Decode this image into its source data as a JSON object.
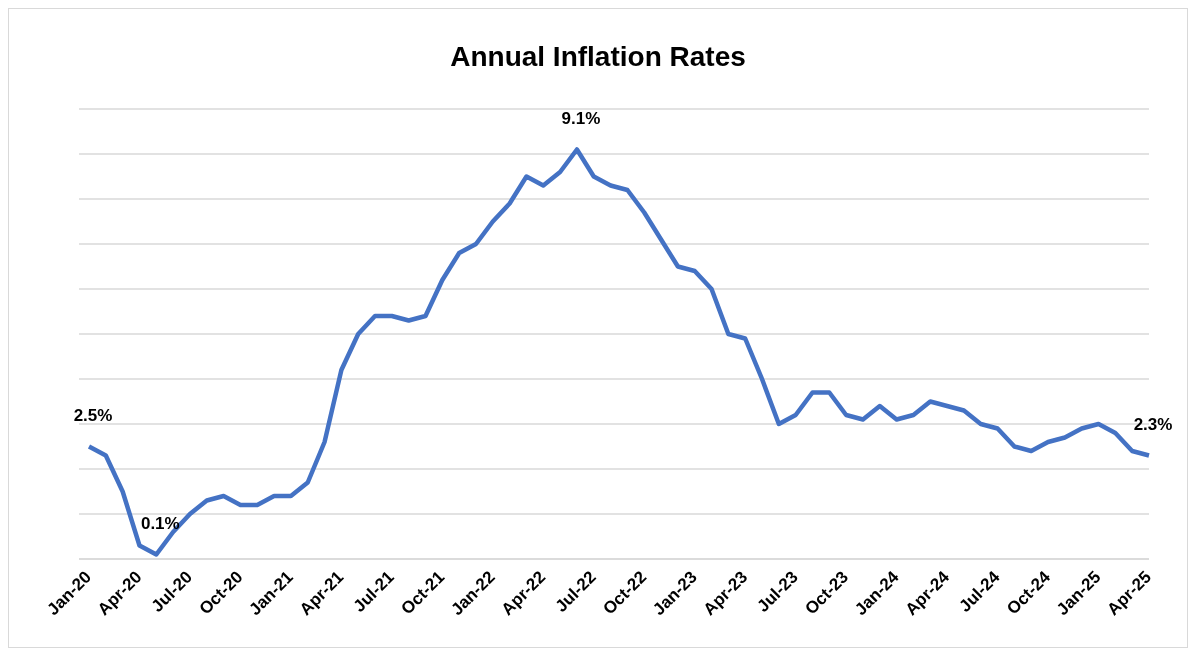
{
  "chart_data": {
    "type": "line",
    "title": "Annual Inflation Rates",
    "categories": [
      "Jan-20",
      null,
      null,
      "Apr-20",
      null,
      null,
      "Jul-20",
      null,
      null,
      "Oct-20",
      null,
      null,
      "Jan-21",
      null,
      null,
      "Apr-21",
      null,
      null,
      "Jul-21",
      null,
      null,
      "Oct-21",
      null,
      null,
      "Jan-22",
      null,
      null,
      "Apr-22",
      null,
      null,
      "Jul-22",
      null,
      null,
      "Oct-22",
      null,
      null,
      "Jan-23",
      null,
      null,
      "Apr-23",
      null,
      null,
      "Jul-23",
      null,
      null,
      "Oct-23",
      null,
      null,
      "Jan-24",
      null,
      null,
      "Apr-24",
      null,
      null,
      "Jul-24",
      null,
      null,
      "Oct-24",
      null,
      null,
      "Jan-25",
      null,
      null,
      "Apr-25"
    ],
    "values": [
      2.5,
      2.3,
      1.5,
      0.3,
      0.1,
      0.6,
      1.0,
      1.3,
      1.4,
      1.2,
      1.2,
      1.4,
      1.4,
      1.7,
      2.6,
      4.2,
      5.0,
      5.4,
      5.4,
      5.3,
      5.4,
      6.2,
      6.8,
      7.0,
      7.5,
      7.9,
      8.5,
      8.3,
      8.6,
      9.1,
      8.5,
      8.3,
      8.2,
      7.7,
      7.1,
      6.5,
      6.4,
      6.0,
      5.0,
      4.9,
      4.0,
      3.0,
      3.2,
      3.7,
      3.7,
      3.2,
      3.1,
      3.4,
      3.1,
      3.2,
      3.5,
      3.4,
      3.3,
      3.0,
      2.9,
      2.5,
      2.4,
      2.6,
      2.7,
      2.9,
      3.0,
      2.8,
      2.4,
      2.3
    ],
    "value_labels": [
      "2.5%",
      null,
      null,
      null,
      "0.1%",
      null,
      null,
      null,
      null,
      null,
      null,
      null,
      null,
      null,
      null,
      null,
      null,
      null,
      null,
      null,
      null,
      null,
      null,
      null,
      null,
      null,
      null,
      null,
      null,
      "9.1%",
      null,
      null,
      null,
      null,
      null,
      null,
      null,
      null,
      null,
      null,
      null,
      null,
      null,
      null,
      null,
      null,
      null,
      null,
      null,
      null,
      null,
      null,
      null,
      null,
      null,
      null,
      null,
      null,
      null,
      null,
      null,
      null,
      null,
      "2.3%"
    ],
    "color": "#4472c4",
    "ylim": [
      0,
      10
    ],
    "yticks": [
      {
        "value": 0,
        "label": null
      },
      {
        "value": 1,
        "label": null
      },
      {
        "value": 2,
        "label": null
      },
      {
        "value": 3,
        "label": null
      },
      {
        "value": 4,
        "label": null
      },
      {
        "value": 5,
        "label": null
      },
      {
        "value": 6,
        "label": null
      },
      {
        "value": 7,
        "label": null
      },
      {
        "value": 8,
        "label": null
      },
      {
        "value": 9,
        "label": null
      },
      {
        "value": 10,
        "label": null
      }
    ],
    "tick_labels": "x",
    "grid": "y",
    "legend": false,
    "marker": "none",
    "line_style": "solid"
  }
}
